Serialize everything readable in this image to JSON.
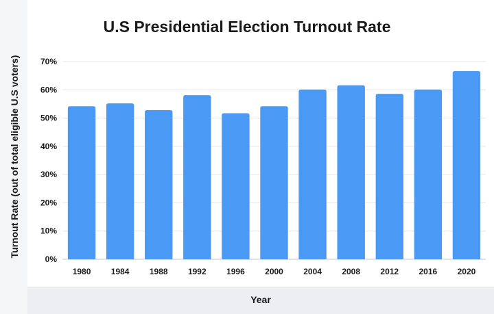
{
  "chart_data": {
    "type": "bar",
    "title": "U.S Presidential Election Turnout Rate",
    "xlabel": "Year",
    "ylabel": "Turnout Rate (out of total eligible U.S voters)",
    "categories": [
      "1980",
      "1984",
      "1988",
      "1992",
      "1996",
      "2000",
      "2004",
      "2008",
      "2012",
      "2016",
      "2020"
    ],
    "values": [
      54.2,
      55.2,
      52.8,
      58.1,
      51.7,
      54.2,
      60.1,
      61.6,
      58.6,
      60.1,
      66.6
    ],
    "ylim": [
      0,
      70
    ],
    "yticks": [
      "0%",
      "10%",
      "20%",
      "30%",
      "40%",
      "50%",
      "60%",
      "70%"
    ],
    "grid": true,
    "bar_color": "#4a9af5"
  }
}
